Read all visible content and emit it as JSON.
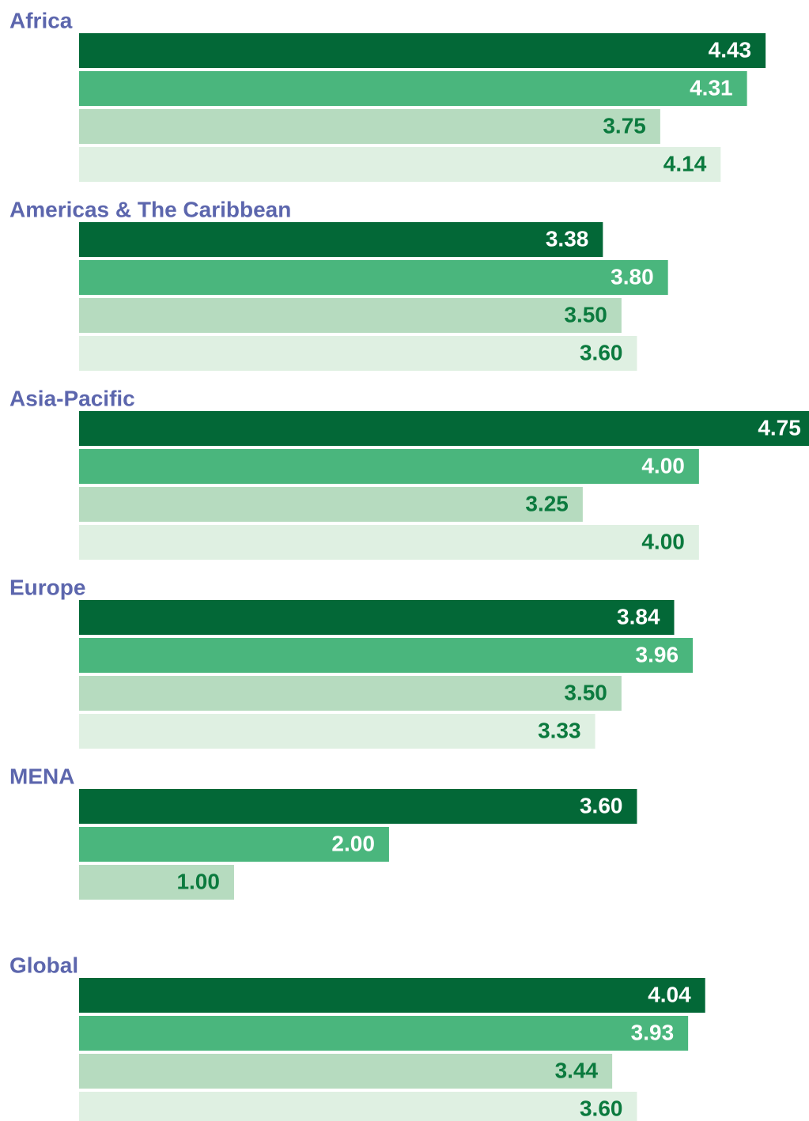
{
  "chart_data": {
    "type": "bar",
    "orientation": "horizontal",
    "categories": [
      "Africa",
      "Americas & The Caribbean",
      "Asia-Pacific",
      "Europe",
      "MENA",
      "Global"
    ],
    "series": [
      {
        "color": "#036837",
        "label_color": "#ffffff",
        "values": [
          4.43,
          3.38,
          4.75,
          3.84,
          3.6,
          4.04
        ],
        "value_labels": [
          "4.43",
          "3.38",
          "4.75",
          "3.84",
          "3.60",
          "4.04"
        ]
      },
      {
        "color": "#4ab67d",
        "label_color": "#ffffff",
        "values": [
          4.31,
          3.8,
          4,
          3.96,
          2,
          3.93
        ],
        "value_labels": [
          "4.31",
          "3.80",
          "4.00",
          "3.96",
          "2.00",
          "3.93"
        ]
      },
      {
        "color": "#b6dbbf",
        "label_color": "#0b7a3e",
        "values": [
          3.75,
          3.5,
          3.25,
          3.5,
          1,
          3.44
        ],
        "value_labels": [
          "3.75",
          "3.50",
          "3.25",
          "3.50",
          "1.00",
          "3.44"
        ]
      },
      {
        "color": "#dff0e2",
        "label_color": "#0b7a3e",
        "values": [
          4.14,
          3.6,
          4,
          3.33,
          null,
          3.6
        ],
        "value_labels": [
          "4.14",
          "3.60",
          "4.00",
          "3.33",
          null,
          "3.60"
        ]
      }
    ],
    "xlim": [
      0,
      4.71
    ]
  }
}
